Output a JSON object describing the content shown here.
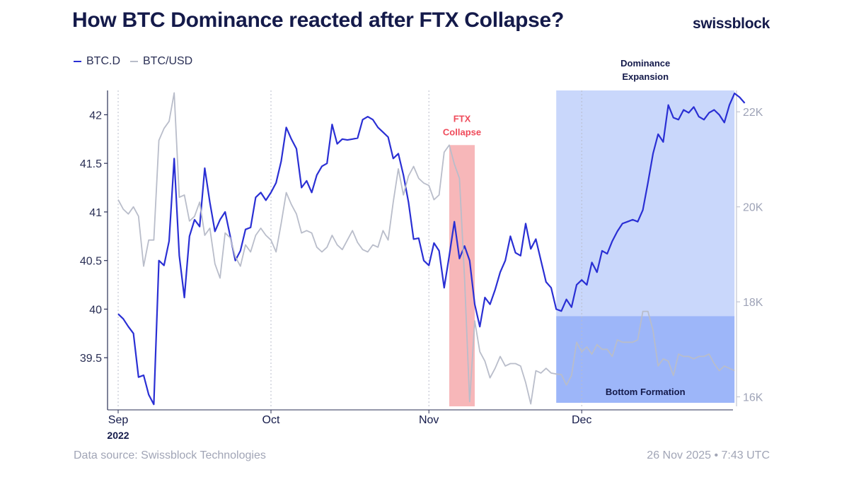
{
  "title": "How BTC Dominance reacted after FTX Collapse?",
  "brand": "swissblock",
  "footer": {
    "source": "Data source: Swissblock Technologies",
    "timestamp": "26 Nov 2025 • 7:43 UTC"
  },
  "colors": {
    "btc_d": "#2a2fd4",
    "btc_usd": "#b9bdca",
    "ftx_band": "#f7b7b9",
    "expansion_band": "#c9d7fb",
    "bottom_band": "#9db6f9",
    "ftx_text": "#ef4a5a",
    "dark_text": "#141a4a"
  },
  "chart_data": {
    "type": "line",
    "x_date_range": [
      "2022-09-01",
      "2022-12-31"
    ],
    "x_ticks": [
      {
        "date": "2022-09-01",
        "label": "Sep",
        "sublabel": "2022"
      },
      {
        "date": "2022-10-01",
        "label": "Oct",
        "sublabel": ""
      },
      {
        "date": "2022-11-01",
        "label": "Nov",
        "sublabel": ""
      },
      {
        "date": "2022-12-01",
        "label": "Dec",
        "sublabel": ""
      }
    ],
    "y_left": {
      "range": [
        39.0,
        42.25
      ],
      "ticks": [
        39.5,
        40,
        40.5,
        41,
        41.5,
        42
      ],
      "tick_labels": [
        "39.5",
        "40",
        "40.5",
        "41",
        "41.5",
        "42"
      ]
    },
    "y_right": {
      "range": [
        15800,
        22450
      ],
      "ticks": [
        16000,
        18000,
        20000,
        22000
      ],
      "tick_labels": [
        "16K",
        "18K",
        "20K",
        "22K"
      ]
    },
    "legend": [
      {
        "name": "BTC.D",
        "axis": "left"
      },
      {
        "name": "BTC/USD",
        "axis": "right"
      }
    ],
    "series": [
      {
        "name": "BTC.D",
        "axis": "left",
        "points": [
          [
            "2022-09-01",
            39.95
          ],
          [
            "2022-09-02",
            39.9
          ],
          [
            "2022-09-03",
            39.82
          ],
          [
            "2022-09-04",
            39.75
          ],
          [
            "2022-09-05",
            39.3
          ],
          [
            "2022-09-06",
            39.32
          ],
          [
            "2022-09-07",
            39.12
          ],
          [
            "2022-09-08",
            39.02
          ],
          [
            "2022-09-09",
            40.5
          ],
          [
            "2022-09-10",
            40.45
          ],
          [
            "2022-09-11",
            40.7
          ],
          [
            "2022-09-12",
            41.55
          ],
          [
            "2022-09-13",
            40.55
          ],
          [
            "2022-09-14",
            40.12
          ],
          [
            "2022-09-15",
            40.75
          ],
          [
            "2022-09-16",
            40.92
          ],
          [
            "2022-09-17",
            40.85
          ],
          [
            "2022-09-18",
            41.45
          ],
          [
            "2022-09-19",
            41.1
          ],
          [
            "2022-09-20",
            40.8
          ],
          [
            "2022-09-21",
            40.92
          ],
          [
            "2022-09-22",
            41.0
          ],
          [
            "2022-09-23",
            40.75
          ],
          [
            "2022-09-24",
            40.5
          ],
          [
            "2022-09-25",
            40.6
          ],
          [
            "2022-09-26",
            40.82
          ],
          [
            "2022-09-27",
            40.84
          ],
          [
            "2022-09-28",
            41.15
          ],
          [
            "2022-09-29",
            41.2
          ],
          [
            "2022-09-30",
            41.12
          ],
          [
            "2022-10-01",
            41.2
          ],
          [
            "2022-10-02",
            41.3
          ],
          [
            "2022-10-03",
            41.52
          ],
          [
            "2022-10-04",
            41.87
          ],
          [
            "2022-10-05",
            41.75
          ],
          [
            "2022-10-06",
            41.65
          ],
          [
            "2022-10-07",
            41.25
          ],
          [
            "2022-10-08",
            41.32
          ],
          [
            "2022-10-09",
            41.2
          ],
          [
            "2022-10-10",
            41.38
          ],
          [
            "2022-10-11",
            41.47
          ],
          [
            "2022-10-12",
            41.5
          ],
          [
            "2022-10-13",
            41.9
          ],
          [
            "2022-10-14",
            41.7
          ],
          [
            "2022-10-15",
            41.75
          ],
          [
            "2022-10-16",
            41.74
          ],
          [
            "2022-10-17",
            41.75
          ],
          [
            "2022-10-18",
            41.76
          ],
          [
            "2022-10-19",
            41.95
          ],
          [
            "2022-10-20",
            41.98
          ],
          [
            "2022-10-21",
            41.95
          ],
          [
            "2022-10-22",
            41.87
          ],
          [
            "2022-10-23",
            41.82
          ],
          [
            "2022-10-24",
            41.77
          ],
          [
            "2022-10-25",
            41.55
          ],
          [
            "2022-10-26",
            41.6
          ],
          [
            "2022-10-27",
            41.38
          ],
          [
            "2022-10-28",
            41.1
          ],
          [
            "2022-10-29",
            40.72
          ],
          [
            "2022-10-30",
            40.73
          ],
          [
            "2022-10-31",
            40.5
          ],
          [
            "2022-11-01",
            40.45
          ],
          [
            "2022-11-02",
            40.68
          ],
          [
            "2022-11-03",
            40.6
          ],
          [
            "2022-11-04",
            40.22
          ],
          [
            "2022-11-05",
            40.55
          ],
          [
            "2022-11-06",
            40.9
          ],
          [
            "2022-11-07",
            40.52
          ],
          [
            "2022-11-08",
            40.65
          ],
          [
            "2022-11-09",
            40.5
          ],
          [
            "2022-11-10",
            40.05
          ],
          [
            "2022-11-11",
            39.82
          ],
          [
            "2022-11-12",
            40.12
          ],
          [
            "2022-11-13",
            40.05
          ],
          [
            "2022-11-14",
            40.2
          ],
          [
            "2022-11-15",
            40.38
          ],
          [
            "2022-11-16",
            40.5
          ],
          [
            "2022-11-17",
            40.75
          ],
          [
            "2022-11-18",
            40.58
          ],
          [
            "2022-11-19",
            40.55
          ],
          [
            "2022-11-20",
            40.88
          ],
          [
            "2022-11-21",
            40.62
          ],
          [
            "2022-11-22",
            40.72
          ],
          [
            "2022-11-23",
            40.5
          ],
          [
            "2022-11-24",
            40.28
          ],
          [
            "2022-11-25",
            40.22
          ],
          [
            "2022-11-26",
            40.0
          ],
          [
            "2022-11-27",
            39.98
          ],
          [
            "2022-11-28",
            40.1
          ],
          [
            "2022-11-29",
            40.02
          ],
          [
            "2022-11-30",
            40.25
          ],
          [
            "2022-12-01",
            40.3
          ],
          [
            "2022-12-02",
            40.25
          ],
          [
            "2022-12-03",
            40.48
          ],
          [
            "2022-12-04",
            40.38
          ],
          [
            "2022-12-05",
            40.6
          ],
          [
            "2022-12-06",
            40.57
          ],
          [
            "2022-12-07",
            40.7
          ],
          [
            "2022-12-08",
            40.8
          ],
          [
            "2022-12-09",
            40.88
          ],
          [
            "2022-12-10",
            40.9
          ],
          [
            "2022-12-11",
            40.92
          ],
          [
            "2022-12-12",
            40.9
          ],
          [
            "2022-12-13",
            41.02
          ],
          [
            "2022-12-14",
            41.3
          ],
          [
            "2022-12-15",
            41.6
          ],
          [
            "2022-12-16",
            41.8
          ],
          [
            "2022-12-17",
            41.72
          ],
          [
            "2022-12-18",
            42.1
          ],
          [
            "2022-12-19",
            41.97
          ],
          [
            "2022-12-20",
            41.95
          ],
          [
            "2022-12-21",
            42.05
          ],
          [
            "2022-12-22",
            42.02
          ],
          [
            "2022-12-23",
            42.08
          ],
          [
            "2022-12-24",
            41.98
          ],
          [
            "2022-12-25",
            41.95
          ],
          [
            "2022-12-26",
            42.02
          ],
          [
            "2022-12-27",
            42.05
          ],
          [
            "2022-12-28",
            42.0
          ],
          [
            "2022-12-29",
            41.92
          ],
          [
            "2022-12-30",
            42.1
          ],
          [
            "2022-12-31",
            42.22
          ],
          [
            "2023-01-01",
            42.18
          ],
          [
            "2023-01-02",
            42.12
          ]
        ]
      },
      {
        "name": "BTC/USD",
        "axis": "right",
        "points": [
          [
            "2022-09-01",
            20150
          ],
          [
            "2022-09-02",
            19950
          ],
          [
            "2022-09-03",
            19850
          ],
          [
            "2022-09-04",
            20000
          ],
          [
            "2022-09-05",
            19800
          ],
          [
            "2022-09-06",
            18750
          ],
          [
            "2022-09-07",
            19300
          ],
          [
            "2022-09-08",
            19300
          ],
          [
            "2022-09-09",
            21400
          ],
          [
            "2022-09-10",
            21650
          ],
          [
            "2022-09-11",
            21800
          ],
          [
            "2022-09-12",
            22400
          ],
          [
            "2022-09-13",
            20200
          ],
          [
            "2022-09-14",
            20250
          ],
          [
            "2022-09-15",
            19700
          ],
          [
            "2022-09-16",
            19800
          ],
          [
            "2022-09-17",
            20100
          ],
          [
            "2022-09-18",
            19400
          ],
          [
            "2022-09-19",
            19550
          ],
          [
            "2022-09-20",
            18800
          ],
          [
            "2022-09-21",
            18500
          ],
          [
            "2022-09-22",
            19450
          ],
          [
            "2022-09-23",
            19350
          ],
          [
            "2022-09-24",
            18950
          ],
          [
            "2022-09-25",
            18750
          ],
          [
            "2022-09-26",
            19200
          ],
          [
            "2022-09-27",
            19050
          ],
          [
            "2022-09-28",
            19400
          ],
          [
            "2022-09-29",
            19550
          ],
          [
            "2022-09-30",
            19400
          ],
          [
            "2022-10-01",
            19300
          ],
          [
            "2022-10-02",
            19050
          ],
          [
            "2022-10-03",
            19650
          ],
          [
            "2022-10-04",
            20300
          ],
          [
            "2022-10-05",
            20050
          ],
          [
            "2022-10-06",
            19850
          ],
          [
            "2022-10-07",
            19450
          ],
          [
            "2022-10-08",
            19500
          ],
          [
            "2022-10-09",
            19450
          ],
          [
            "2022-10-10",
            19150
          ],
          [
            "2022-10-11",
            19050
          ],
          [
            "2022-10-12",
            19150
          ],
          [
            "2022-10-13",
            19400
          ],
          [
            "2022-10-14",
            19200
          ],
          [
            "2022-10-15",
            19100
          ],
          [
            "2022-10-16",
            19300
          ],
          [
            "2022-10-17",
            19500
          ],
          [
            "2022-10-18",
            19250
          ],
          [
            "2022-10-19",
            19100
          ],
          [
            "2022-10-20",
            19050
          ],
          [
            "2022-10-21",
            19200
          ],
          [
            "2022-10-22",
            19150
          ],
          [
            "2022-10-23",
            19500
          ],
          [
            "2022-10-24",
            19300
          ],
          [
            "2022-10-25",
            20100
          ],
          [
            "2022-10-26",
            20800
          ],
          [
            "2022-10-27",
            20250
          ],
          [
            "2022-10-28",
            20650
          ],
          [
            "2022-10-29",
            20850
          ],
          [
            "2022-10-30",
            20600
          ],
          [
            "2022-10-31",
            20500
          ],
          [
            "2022-11-01",
            20450
          ],
          [
            "2022-11-02",
            20150
          ],
          [
            "2022-11-03",
            20250
          ],
          [
            "2022-11-04",
            21150
          ],
          [
            "2022-11-05",
            21300
          ],
          [
            "2022-11-06",
            20900
          ],
          [
            "2022-11-07",
            20600
          ],
          [
            "2022-11-08",
            18500
          ],
          [
            "2022-11-09",
            15900
          ],
          [
            "2022-11-10",
            17600
          ],
          [
            "2022-11-11",
            16950
          ],
          [
            "2022-11-12",
            16750
          ],
          [
            "2022-11-13",
            16400
          ],
          [
            "2022-11-14",
            16600
          ],
          [
            "2022-11-15",
            16850
          ],
          [
            "2022-11-16",
            16650
          ],
          [
            "2022-11-17",
            16700
          ],
          [
            "2022-11-18",
            16700
          ],
          [
            "2022-11-19",
            16650
          ],
          [
            "2022-11-20",
            16300
          ],
          [
            "2022-11-21",
            15850
          ],
          [
            "2022-11-22",
            16550
          ],
          [
            "2022-11-23",
            16500
          ],
          [
            "2022-11-24",
            16600
          ],
          [
            "2022-11-25",
            16500
          ],
          [
            "2022-11-26",
            16480
          ],
          [
            "2022-11-27",
            16470
          ],
          [
            "2022-11-28",
            16250
          ],
          [
            "2022-11-29",
            16450
          ],
          [
            "2022-11-30",
            17150
          ],
          [
            "2022-12-01",
            16950
          ],
          [
            "2022-12-02",
            17050
          ],
          [
            "2022-12-03",
            16900
          ],
          [
            "2022-12-04",
            17100
          ],
          [
            "2022-12-05",
            17000
          ],
          [
            "2022-12-06",
            17000
          ],
          [
            "2022-12-07",
            16850
          ],
          [
            "2022-12-08",
            17200
          ],
          [
            "2022-12-09",
            17150
          ],
          [
            "2022-12-10",
            17150
          ],
          [
            "2022-12-11",
            17150
          ],
          [
            "2022-12-12",
            17200
          ],
          [
            "2022-12-13",
            17800
          ],
          [
            "2022-12-14",
            17800
          ],
          [
            "2022-12-15",
            17400
          ],
          [
            "2022-12-16",
            16650
          ],
          [
            "2022-12-17",
            16800
          ],
          [
            "2022-12-18",
            16750
          ],
          [
            "2022-12-19",
            16450
          ],
          [
            "2022-12-20",
            16900
          ],
          [
            "2022-12-21",
            16850
          ],
          [
            "2022-12-22",
            16850
          ],
          [
            "2022-12-23",
            16800
          ],
          [
            "2022-12-24",
            16850
          ],
          [
            "2022-12-25",
            16850
          ],
          [
            "2022-12-26",
            16900
          ],
          [
            "2022-12-27",
            16700
          ],
          [
            "2022-12-28",
            16550
          ],
          [
            "2022-12-29",
            16650
          ],
          [
            "2022-12-30",
            16600
          ],
          [
            "2022-12-31",
            16550
          ]
        ]
      }
    ],
    "annotations": [
      {
        "name": "ftx-collapse",
        "label_lines": [
          "FTX",
          "Collapse"
        ],
        "x_start": "2022-11-05",
        "x_end": "2022-11-10",
        "y_top_right": 21300,
        "kind": "ftx_band"
      },
      {
        "name": "dominance-expansion",
        "label_lines": [
          "Dominance",
          "Expansion"
        ],
        "x_start": "2022-11-26",
        "x_end": "2022-12-31",
        "y_top_left": 42.25,
        "y_bottom_right": 17700,
        "kind": "expansion_band"
      },
      {
        "name": "bottom-formation",
        "label_lines": [
          "Bottom Formation"
        ],
        "x_start": "2022-11-26",
        "x_end": "2022-12-31",
        "y_top_right": 17700,
        "kind": "bottom_band"
      }
    ],
    "vertical_gridlines": [
      "2022-09-01",
      "2022-10-01",
      "2022-11-01",
      "2022-12-01"
    ]
  }
}
